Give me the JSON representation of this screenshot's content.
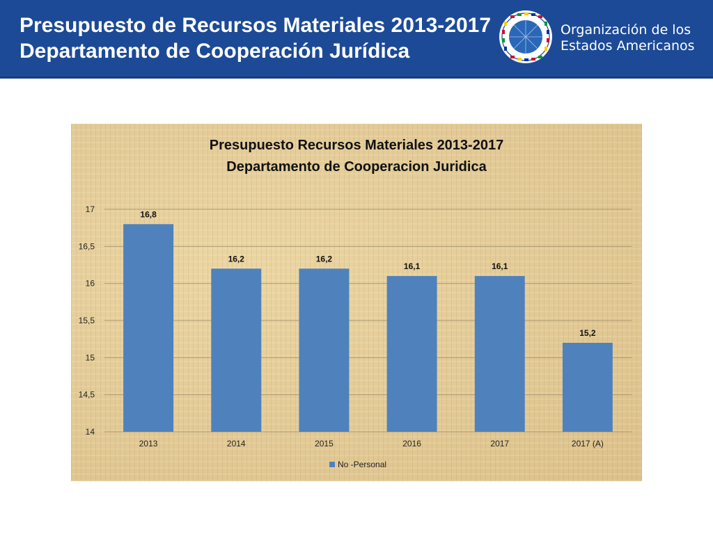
{
  "header": {
    "title_line1": "Presupuesto de Recursos Materiales 2013-2017",
    "title_line2": "Departamento de Cooperación Jurídica",
    "org_line1": "Organización de los",
    "org_line2": "Estados Americanos"
  },
  "colors": {
    "banner": "#1c4a96",
    "bar": "#4f81bd",
    "panel": "#e3cc9a"
  },
  "chart_data": {
    "type": "bar",
    "title": "Presupuesto Recursos Materiales 2013-2017",
    "subtitle": "Departamento de Cooperacion Juridica",
    "categories": [
      "2013",
      "2014",
      "2015",
      "2016",
      "2017",
      "2017 (A)"
    ],
    "series": [
      {
        "name": "No -Personal",
        "values": [
          16.8,
          16.2,
          16.2,
          16.1,
          16.1,
          15.2
        ],
        "labels": [
          "16,8",
          "16,2",
          "16,2",
          "16,1",
          "16,1",
          "15,2"
        ]
      }
    ],
    "ylim": [
      14,
      17
    ],
    "yticks": [
      14,
      14.5,
      15,
      15.5,
      16,
      16.5,
      17
    ],
    "ytick_labels": [
      "14",
      "14,5",
      "15",
      "15,5",
      "16",
      "16,5",
      "17"
    ],
    "grid": true,
    "legend": "bottom"
  }
}
